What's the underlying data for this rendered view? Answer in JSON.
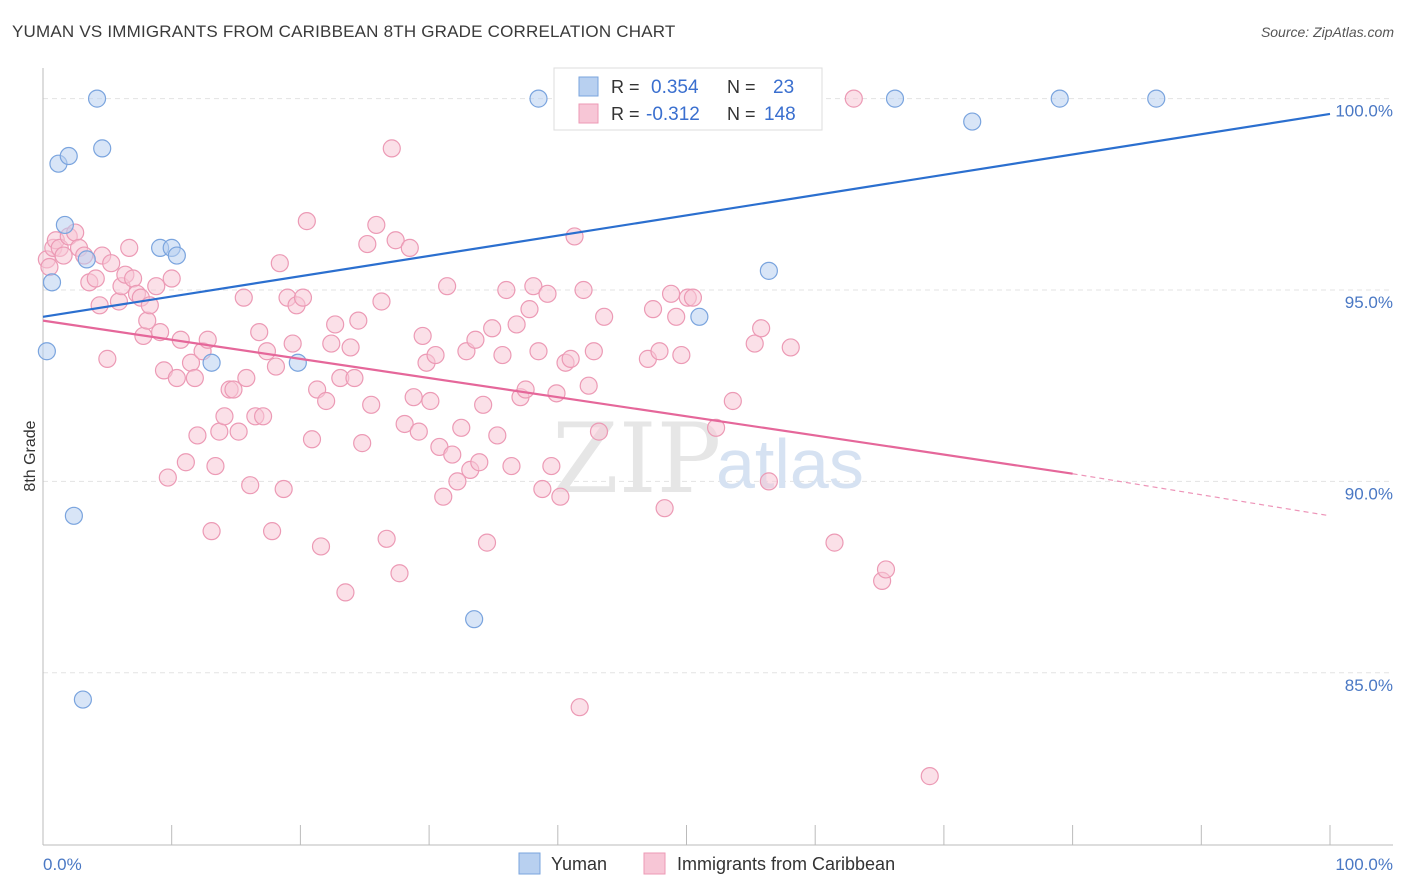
{
  "header": {
    "title": "YUMAN VS IMMIGRANTS FROM CARIBBEAN 8TH GRADE CORRELATION CHART",
    "source": "Source: ZipAtlas.com"
  },
  "colors": {
    "yuman_fill": "#b8d0f0",
    "yuman_stroke": "#7aa4de",
    "yuman_line": "#2b6fcf",
    "carib_fill": "#f7c6d6",
    "carib_stroke": "#ec9ab5",
    "carib_line": "#e5679a",
    "tick_color": "#4a78c4"
  },
  "chart_data": {
    "type": "scatter",
    "title": "YUMAN VS IMMIGRANTS FROM CARIBBEAN 8TH GRADE CORRELATION CHART",
    "xlabel": "",
    "ylabel": "8th Grade",
    "xlim": [
      0,
      100
    ],
    "ylim": [
      80.5,
      100.8
    ],
    "x_ticks": [
      "0.0%",
      "100.0%"
    ],
    "y_ticks": [
      {
        "value": 100,
        "label": "100.0%"
      },
      {
        "value": 95,
        "label": "95.0%"
      },
      {
        "value": 90,
        "label": "90.0%"
      },
      {
        "value": 85,
        "label": "85.0%"
      }
    ],
    "grid": true,
    "legend": {
      "placement": "top-center",
      "rows": [
        {
          "r_label": "R =",
          "r_value": "0.354",
          "n_label": "N =",
          "n_value": "23"
        },
        {
          "r_label": "R =",
          "r_value": "-0.312",
          "n_label": "N =",
          "n_value": "148"
        }
      ]
    },
    "series": [
      {
        "name": "Yuman",
        "trend": {
          "x": [
            0,
            100
          ],
          "y": [
            94.3,
            99.6
          ]
        },
        "points": [
          [
            0.3,
            93.4
          ],
          [
            0.7,
            95.2
          ],
          [
            1.2,
            98.3
          ],
          [
            1.7,
            96.7
          ],
          [
            2.0,
            98.5
          ],
          [
            2.4,
            89.1
          ],
          [
            3.1,
            84.3
          ],
          [
            3.4,
            95.8
          ],
          [
            4.2,
            100
          ],
          [
            4.6,
            98.7
          ],
          [
            9.1,
            96.1
          ],
          [
            10.0,
            96.1
          ],
          [
            10.4,
            95.9
          ],
          [
            13.1,
            93.1
          ],
          [
            19.8,
            93.1
          ],
          [
            33.5,
            86.4
          ],
          [
            38.5,
            100
          ],
          [
            51.0,
            94.3
          ],
          [
            56.4,
            95.5
          ],
          [
            66.2,
            100
          ],
          [
            72.2,
            99.4
          ],
          [
            79.0,
            100
          ],
          [
            86.5,
            100
          ]
        ]
      },
      {
        "name": "Immigrants from Caribbean",
        "trend": {
          "x": [
            0,
            80
          ],
          "y": [
            94.2,
            90.2
          ]
        },
        "trend_dashed": {
          "x": [
            80,
            100
          ],
          "y": [
            90.2,
            89.1
          ]
        },
        "points": [
          [
            0.3,
            95.8
          ],
          [
            0.5,
            95.6
          ],
          [
            0.8,
            96.1
          ],
          [
            1.0,
            96.3
          ],
          [
            1.3,
            96.1
          ],
          [
            1.6,
            95.9
          ],
          [
            2.0,
            96.4
          ],
          [
            2.5,
            96.5
          ],
          [
            2.8,
            96.1
          ],
          [
            3.2,
            95.9
          ],
          [
            3.6,
            95.2
          ],
          [
            4.1,
            95.3
          ],
          [
            4.4,
            94.6
          ],
          [
            4.6,
            95.9
          ],
          [
            5.0,
            93.2
          ],
          [
            5.3,
            95.7
          ],
          [
            5.9,
            94.7
          ],
          [
            6.1,
            95.1
          ],
          [
            6.4,
            95.4
          ],
          [
            6.7,
            96.1
          ],
          [
            7.0,
            95.3
          ],
          [
            7.3,
            94.9
          ],
          [
            7.6,
            94.8
          ],
          [
            7.8,
            93.8
          ],
          [
            8.1,
            94.2
          ],
          [
            8.3,
            94.6
          ],
          [
            8.8,
            95.1
          ],
          [
            9.1,
            93.9
          ],
          [
            9.4,
            92.9
          ],
          [
            9.7,
            90.1
          ],
          [
            10.0,
            95.3
          ],
          [
            10.4,
            92.7
          ],
          [
            10.7,
            93.7
          ],
          [
            11.1,
            90.5
          ],
          [
            11.5,
            93.1
          ],
          [
            11.8,
            92.7
          ],
          [
            12.0,
            91.2
          ],
          [
            12.4,
            93.4
          ],
          [
            12.8,
            93.7
          ],
          [
            13.1,
            88.7
          ],
          [
            13.4,
            90.4
          ],
          [
            13.7,
            91.3
          ],
          [
            14.1,
            91.7
          ],
          [
            14.5,
            92.4
          ],
          [
            14.8,
            92.4
          ],
          [
            15.2,
            91.3
          ],
          [
            15.6,
            94.8
          ],
          [
            15.8,
            92.7
          ],
          [
            16.1,
            89.9
          ],
          [
            16.5,
            91.7
          ],
          [
            16.8,
            93.9
          ],
          [
            17.1,
            91.7
          ],
          [
            17.4,
            93.4
          ],
          [
            17.8,
            88.7
          ],
          [
            18.1,
            93.0
          ],
          [
            18.4,
            95.7
          ],
          [
            18.7,
            89.8
          ],
          [
            19.0,
            94.8
          ],
          [
            19.4,
            93.6
          ],
          [
            19.7,
            94.6
          ],
          [
            20.2,
            94.8
          ],
          [
            20.5,
            96.8
          ],
          [
            20.9,
            91.1
          ],
          [
            21.3,
            92.4
          ],
          [
            21.6,
            88.3
          ],
          [
            22.0,
            92.1
          ],
          [
            22.4,
            93.6
          ],
          [
            22.7,
            94.1
          ],
          [
            23.1,
            92.7
          ],
          [
            23.5,
            87.1
          ],
          [
            23.9,
            93.5
          ],
          [
            24.2,
            92.7
          ],
          [
            24.5,
            94.2
          ],
          [
            24.8,
            91.0
          ],
          [
            25.2,
            96.2
          ],
          [
            25.5,
            92.0
          ],
          [
            25.9,
            96.7
          ],
          [
            26.3,
            94.7
          ],
          [
            26.7,
            88.5
          ],
          [
            27.1,
            98.7
          ],
          [
            27.4,
            96.3
          ],
          [
            27.7,
            87.6
          ],
          [
            28.1,
            91.5
          ],
          [
            28.5,
            96.1
          ],
          [
            28.8,
            92.2
          ],
          [
            29.2,
            91.3
          ],
          [
            29.5,
            93.8
          ],
          [
            29.8,
            93.1
          ],
          [
            30.1,
            92.1
          ],
          [
            30.5,
            93.3
          ],
          [
            30.8,
            90.9
          ],
          [
            31.1,
            89.6
          ],
          [
            31.4,
            95.1
          ],
          [
            31.8,
            90.7
          ],
          [
            32.2,
            90.0
          ],
          [
            32.5,
            91.4
          ],
          [
            32.9,
            93.4
          ],
          [
            33.2,
            90.3
          ],
          [
            33.6,
            93.7
          ],
          [
            33.9,
            90.5
          ],
          [
            34.2,
            92.0
          ],
          [
            34.5,
            88.4
          ],
          [
            34.9,
            94.0
          ],
          [
            35.3,
            91.2
          ],
          [
            35.7,
            93.3
          ],
          [
            36.0,
            95.0
          ],
          [
            36.4,
            90.4
          ],
          [
            36.8,
            94.1
          ],
          [
            37.1,
            92.2
          ],
          [
            37.5,
            92.4
          ],
          [
            37.8,
            94.5
          ],
          [
            38.1,
            95.1
          ],
          [
            38.5,
            93.4
          ],
          [
            38.8,
            89.8
          ],
          [
            39.2,
            94.9
          ],
          [
            39.5,
            90.4
          ],
          [
            39.9,
            92.3
          ],
          [
            40.2,
            89.6
          ],
          [
            40.6,
            93.1
          ],
          [
            41.0,
            93.2
          ],
          [
            41.3,
            96.4
          ],
          [
            41.7,
            84.1
          ],
          [
            42.0,
            95.0
          ],
          [
            42.4,
            92.5
          ],
          [
            42.8,
            93.4
          ],
          [
            43.2,
            91.3
          ],
          [
            43.6,
            94.3
          ],
          [
            47.0,
            93.2
          ],
          [
            47.4,
            94.5
          ],
          [
            47.9,
            93.4
          ],
          [
            48.3,
            89.3
          ],
          [
            48.8,
            94.9
          ],
          [
            49.2,
            94.3
          ],
          [
            49.6,
            93.3
          ],
          [
            50.1,
            94.8
          ],
          [
            50.5,
            94.8
          ],
          [
            52.3,
            91.4
          ],
          [
            53.6,
            92.1
          ],
          [
            55.3,
            93.6
          ],
          [
            55.8,
            94.0
          ],
          [
            56.4,
            90.0
          ],
          [
            58.1,
            93.5
          ],
          [
            61.5,
            88.4
          ],
          [
            65.2,
            87.4
          ],
          [
            65.5,
            87.7
          ],
          [
            68.9,
            82.3
          ],
          [
            63.0,
            100
          ]
        ]
      }
    ]
  },
  "bottom_legend": {
    "items": [
      {
        "label": "Yuman"
      },
      {
        "label": "Immigrants from Caribbean"
      }
    ]
  },
  "watermark": {
    "zip": "ZIP",
    "atlas": "atlas"
  }
}
